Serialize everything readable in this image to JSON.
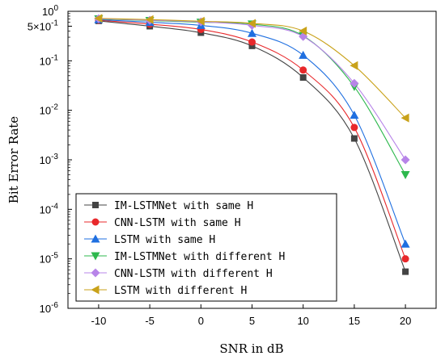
{
  "chart_data": {
    "type": "line",
    "xlabel": "SNR in dB",
    "ylabel": "Bit Error Rate",
    "y_scale": "log",
    "xlim": [
      -13,
      23
    ],
    "ylim": [
      1e-06,
      1
    ],
    "x_ticks": [
      -10,
      -5,
      0,
      5,
      10,
      15,
      20
    ],
    "x_tick_labels": [
      "-10",
      "-5",
      "0",
      "5",
      "10",
      "15",
      "20"
    ],
    "y_ticks": [
      {
        "value": 1,
        "base": "10",
        "exp": "0"
      },
      {
        "value": 0.5,
        "base": "5×10",
        "exp": "-1"
      },
      {
        "value": 0.1,
        "base": "10",
        "exp": "-1"
      },
      {
        "value": 0.01,
        "base": "10",
        "exp": "-2"
      },
      {
        "value": 0.001,
        "base": "10",
        "exp": "-3"
      },
      {
        "value": 0.0001,
        "base": "10",
        "exp": "-4"
      },
      {
        "value": 1e-05,
        "base": "10",
        "exp": "-5"
      },
      {
        "value": 1e-06,
        "base": "10",
        "exp": "-6"
      }
    ],
    "legend_position": "bottom-left",
    "x": [
      -10,
      -5,
      0,
      5,
      10,
      15,
      20
    ],
    "series": [
      {
        "name": "IM-LSTMNet with same H",
        "color": "#444444",
        "marker": "square",
        "values": [
          0.64,
          0.5,
          0.37,
          0.2,
          0.046,
          0.0027,
          5.5e-06
        ]
      },
      {
        "name": "CNN-LSTM with same H",
        "color": "#e8282b",
        "marker": "circle",
        "values": [
          0.66,
          0.55,
          0.43,
          0.24,
          0.065,
          0.0045,
          1e-05
        ]
      },
      {
        "name": "LSTM with same H",
        "color": "#1f6fe0",
        "marker": "triangle-up",
        "values": [
          0.68,
          0.6,
          0.52,
          0.36,
          0.13,
          0.008,
          2e-05
        ]
      },
      {
        "name": "IM-LSTMNet with different H",
        "color": "#2db84d",
        "marker": "triangle-down",
        "values": [
          0.7,
          0.65,
          0.6,
          0.55,
          0.32,
          0.03,
          0.0005
        ]
      },
      {
        "name": "CNN-LSTM with different H",
        "color": "#b784e8",
        "marker": "diamond",
        "values": [
          0.71,
          0.66,
          0.61,
          0.52,
          0.31,
          0.035,
          0.001
        ]
      },
      {
        "name": "LSTM with different H",
        "color": "#c9a21a",
        "marker": "triangle-left",
        "values": [
          0.72,
          0.68,
          0.63,
          0.57,
          0.4,
          0.08,
          0.007
        ]
      }
    ]
  }
}
